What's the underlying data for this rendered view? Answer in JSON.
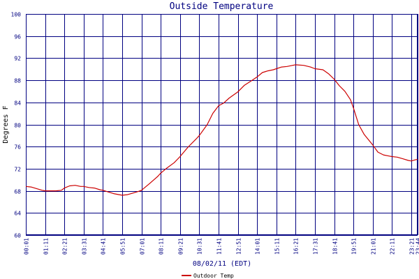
{
  "chart_data": {
    "type": "line",
    "title": "Outside Temperature",
    "xlabel": "08/02/11 (EDT)",
    "ylabel": "Degrees F",
    "ylim": [
      60,
      100
    ],
    "y_ticks": [
      60,
      64,
      68,
      72,
      76,
      80,
      84,
      88,
      92,
      96,
      100
    ],
    "x_ticks": [
      "00:01",
      "01:11",
      "02:21",
      "03:31",
      "04:41",
      "05:51",
      "07:01",
      "08:11",
      "09:21",
      "10:31",
      "11:41",
      "12:51",
      "14:01",
      "15:11",
      "16:21",
      "17:31",
      "18:41",
      "19:51",
      "21:01",
      "22:11",
      "23:21",
      "23:44"
    ],
    "grid": true,
    "legend_position": "bottom-left",
    "series": [
      {
        "name": "Outdoor Temp",
        "color": "#cc0000",
        "points": [
          [
            "00:01",
            68.8
          ],
          [
            "00:20",
            68.7
          ],
          [
            "00:40",
            68.4
          ],
          [
            "01:00",
            68.1
          ],
          [
            "01:11",
            68.0
          ],
          [
            "01:30",
            68.0
          ],
          [
            "01:50",
            68.0
          ],
          [
            "02:10",
            68.1
          ],
          [
            "02:21",
            68.5
          ],
          [
            "02:40",
            68.9
          ],
          [
            "03:00",
            69.0
          ],
          [
            "03:20",
            68.8
          ],
          [
            "03:31",
            68.8
          ],
          [
            "03:50",
            68.6
          ],
          [
            "04:10",
            68.5
          ],
          [
            "04:30",
            68.2
          ],
          [
            "04:41",
            68.1
          ],
          [
            "05:00",
            67.8
          ],
          [
            "05:20",
            67.5
          ],
          [
            "05:40",
            67.3
          ],
          [
            "05:51",
            67.2
          ],
          [
            "06:10",
            67.3
          ],
          [
            "06:30",
            67.6
          ],
          [
            "06:50",
            67.9
          ],
          [
            "07:01",
            68.1
          ],
          [
            "07:30",
            69.3
          ],
          [
            "08:00",
            70.6
          ],
          [
            "08:11",
            71.2
          ],
          [
            "08:30",
            72.0
          ],
          [
            "09:00",
            73.1
          ],
          [
            "09:21",
            74.2
          ],
          [
            "09:50",
            75.9
          ],
          [
            "10:20",
            77.4
          ],
          [
            "10:31",
            78.0
          ],
          [
            "11:00",
            80.0
          ],
          [
            "11:20",
            82.0
          ],
          [
            "11:41",
            83.4
          ],
          [
            "12:00",
            83.9
          ],
          [
            "12:20",
            84.8
          ],
          [
            "12:51",
            85.9
          ],
          [
            "13:15",
            87.1
          ],
          [
            "13:40",
            87.9
          ],
          [
            "14:01",
            88.6
          ],
          [
            "14:20",
            89.4
          ],
          [
            "14:40",
            89.7
          ],
          [
            "15:00",
            89.9
          ],
          [
            "15:11",
            90.1
          ],
          [
            "15:30",
            90.4
          ],
          [
            "15:50",
            90.5
          ],
          [
            "16:10",
            90.7
          ],
          [
            "16:21",
            90.8
          ],
          [
            "16:50",
            90.7
          ],
          [
            "17:15",
            90.4
          ],
          [
            "17:31",
            90.1
          ],
          [
            "18:00",
            89.9
          ],
          [
            "18:20",
            89.2
          ],
          [
            "18:41",
            88.2
          ],
          [
            "19:00",
            87.0
          ],
          [
            "19:20",
            86.0
          ],
          [
            "19:40",
            84.5
          ],
          [
            "19:51",
            83.0
          ],
          [
            "20:10",
            80.0
          ],
          [
            "20:30",
            78.2
          ],
          [
            "21:01",
            76.3
          ],
          [
            "21:20",
            75.0
          ],
          [
            "21:40",
            74.5
          ],
          [
            "22:00",
            74.3
          ],
          [
            "22:11",
            74.2
          ],
          [
            "22:30",
            74.1
          ],
          [
            "22:50",
            73.8
          ],
          [
            "23:10",
            73.5
          ],
          [
            "23:21",
            73.4
          ],
          [
            "23:35",
            73.6
          ],
          [
            "23:44",
            73.7
          ]
        ]
      }
    ]
  }
}
